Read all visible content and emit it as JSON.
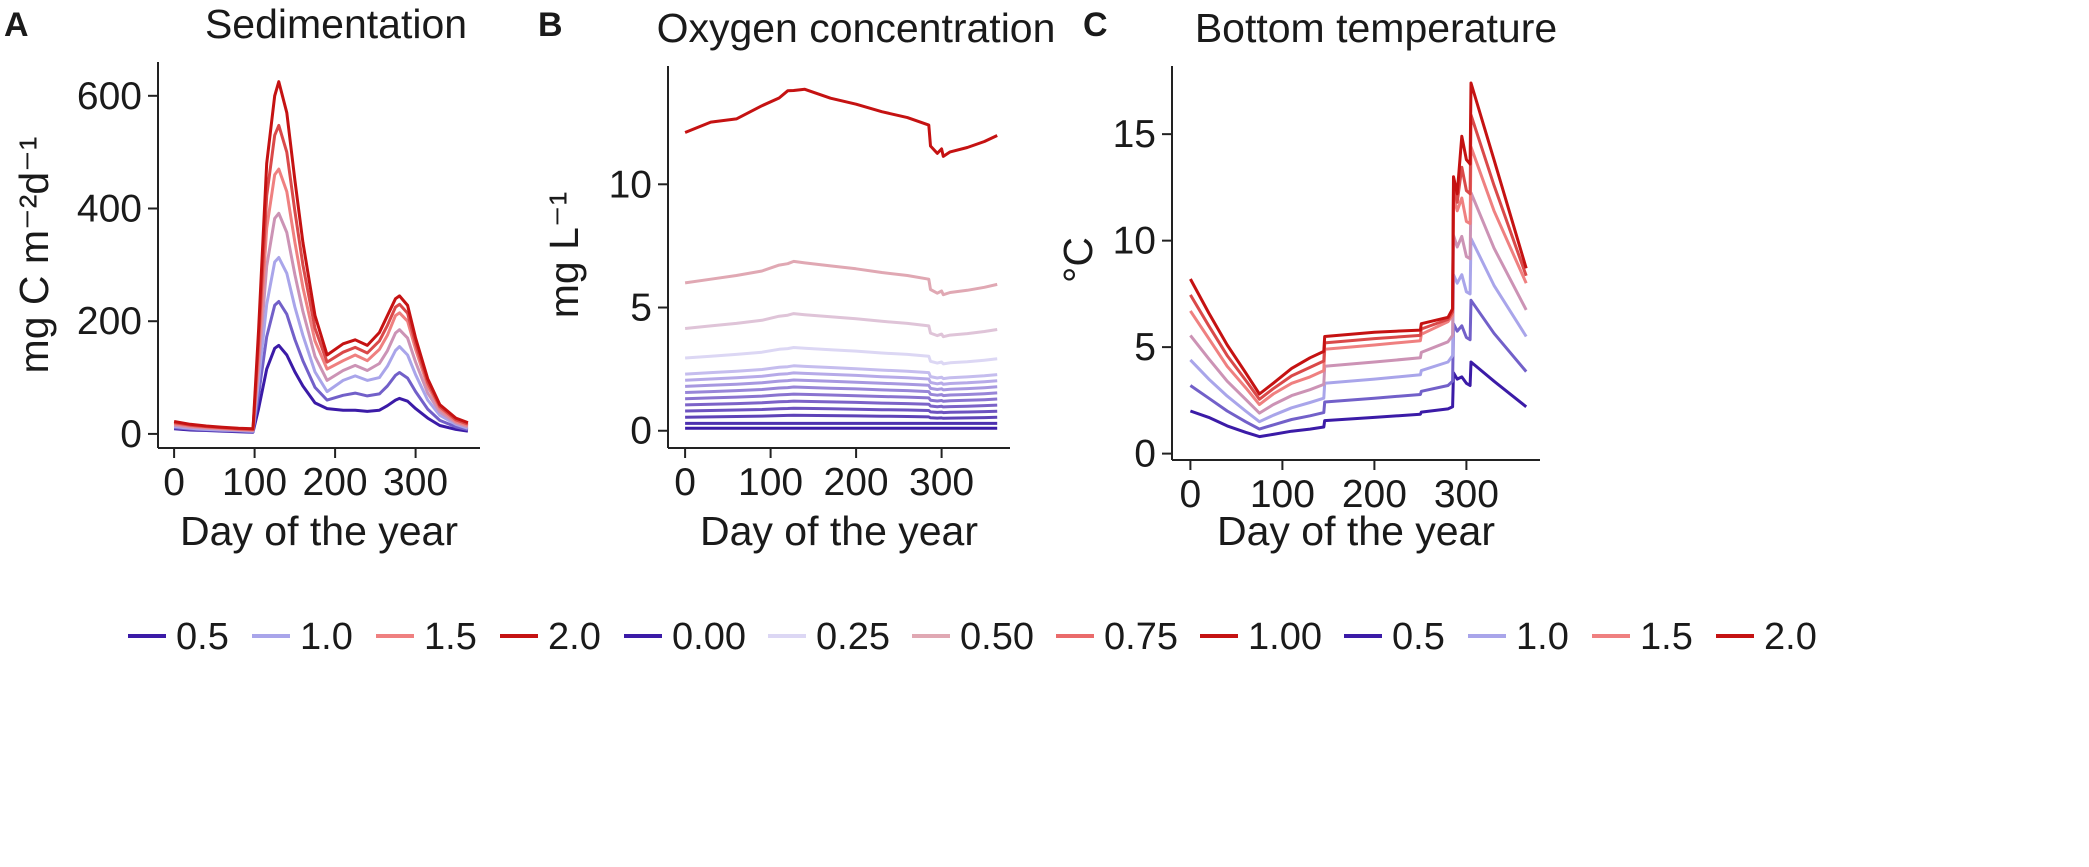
{
  "chart_data": [
    {
      "type": "line",
      "panel": "A",
      "title": "Sedimentation",
      "xlabel": "Day of the year",
      "ylabel": "mg C m⁻²d⁻¹",
      "xlim": [
        -20,
        380
      ],
      "ylim": [
        -25,
        660
      ],
      "xticks": [
        0,
        100,
        200,
        300
      ],
      "yticks": [
        0,
        200,
        400,
        600
      ],
      "x": [
        0,
        20,
        40,
        60,
        80,
        98,
        105,
        115,
        125,
        130,
        140,
        150,
        160,
        175,
        190,
        210,
        225,
        240,
        255,
        265,
        275,
        280,
        290,
        300,
        315,
        330,
        350,
        365
      ],
      "series": [
        {
          "name": "0.5",
          "color": "#3b1ba7",
          "values": [
            9,
            7,
            6,
            5,
            4,
            3,
            45,
            115,
            152,
            157,
            140,
            110,
            85,
            55,
            45,
            42,
            42,
            40,
            42,
            50,
            60,
            63,
            58,
            45,
            28,
            15,
            8,
            5
          ]
        },
        {
          "name": "1.0",
          "color": "#a9a5ea",
          "values": [
            13,
            10,
            8,
            7,
            6,
            5,
            95,
            230,
            305,
            313,
            285,
            225,
            175,
            110,
            75,
            95,
            103,
            95,
            100,
            120,
            148,
            155,
            140,
            105,
            60,
            33,
            17,
            10
          ]
        },
        {
          "name": "1.5",
          "color": "#ef8080",
          "values": [
            18,
            14,
            12,
            10,
            8,
            7,
            140,
            365,
            460,
            470,
            430,
            340,
            260,
            165,
            115,
            130,
            140,
            130,
            150,
            175,
            210,
            215,
            200,
            150,
            85,
            45,
            22,
            15
          ]
        },
        {
          "name": "2.0",
          "color": "#c51212",
          "values": [
            22,
            17,
            14,
            12,
            10,
            9,
            185,
            480,
            600,
            625,
            570,
            450,
            340,
            210,
            140,
            160,
            167,
            157,
            180,
            210,
            240,
            245,
            228,
            170,
            98,
            52,
            28,
            20
          ]
        }
      ],
      "extra_series_colors": [
        "#6e57c9",
        "#d9d3f1",
        "#f0b4b4",
        "#dc4a4a"
      ]
    },
    {
      "type": "line",
      "panel": "B",
      "title": "Oxygen concentration",
      "xlabel": "Day of the year",
      "ylabel": "mg L⁻¹",
      "xlim": [
        -20,
        380
      ],
      "ylim": [
        -0.7,
        14.8
      ],
      "xticks": [
        0,
        100,
        200,
        300
      ],
      "yticks": [
        0,
        5,
        10
      ],
      "x": [
        0,
        30,
        60,
        90,
        110,
        120,
        127,
        140,
        170,
        200,
        230,
        260,
        285,
        287,
        295,
        300,
        302,
        310,
        330,
        350,
        365
      ],
      "shape": [
        1.0,
        1.025,
        1.05,
        1.08,
        1.12,
        1.13,
        1.145,
        1.135,
        1.115,
        1.095,
        1.07,
        1.05,
        1.025,
        0.955,
        0.93,
        0.945,
        0.92,
        0.935,
        0.95,
        0.97,
        0.99
      ],
      "series": [
        {
          "name": "0.00",
          "color": "#3b1ba7",
          "base": 0.1
        },
        {
          "name": "",
          "color": "#4d31b0",
          "base": 0.3
        },
        {
          "name": "",
          "color": "#5e43b8",
          "base": 0.55
        },
        {
          "name": "",
          "color": "#6d53c0",
          "base": 0.8
        },
        {
          "name": "",
          "color": "#7c63c8",
          "base": 1.05
        },
        {
          "name": "",
          "color": "#8a74d0",
          "base": 1.3
        },
        {
          "name": "",
          "color": "#9886d8",
          "base": 1.55
        },
        {
          "name": "",
          "color": "#a798e0",
          "base": 1.8
        },
        {
          "name": "",
          "color": "#b6aae8",
          "base": 2.05
        },
        {
          "name": "",
          "color": "#c5bdee",
          "base": 2.3
        },
        {
          "name": "0.25",
          "color": "#dcd7f4",
          "base": 2.95
        },
        {
          "name": "",
          "color": "#dfc4d8",
          "base": 4.15
        },
        {
          "name": "0.50",
          "color": "#e0a8b3",
          "base": 6.0
        },
        {
          "name": "1.00",
          "color": "#c51212",
          "base": 12.1,
          "jitter": true
        }
      ]
    },
    {
      "type": "line",
      "panel": "C",
      "title": "Bottom temperature",
      "xlabel": "Day of the year",
      "ylabel": "°C",
      "xlim": [
        -20,
        380
      ],
      "ylim": [
        -0.3,
        18.2
      ],
      "xticks": [
        0,
        100,
        200,
        300
      ],
      "yticks": [
        0,
        5,
        10,
        15
      ],
      "x": [
        0,
        20,
        40,
        60,
        75,
        90,
        110,
        130,
        145,
        146,
        200,
        250,
        251,
        280,
        285,
        286,
        290,
        295,
        300,
        304,
        305,
        330,
        365
      ],
      "series": [
        {
          "name": "0.5",
          "color": "#3b1ba7",
          "values": [
            2.0,
            1.7,
            1.3,
            1.0,
            0.8,
            0.9,
            1.05,
            1.15,
            1.25,
            1.55,
            1.7,
            1.85,
            1.95,
            2.1,
            2.2,
            3.8,
            3.5,
            3.6,
            3.3,
            3.2,
            4.3,
            3.4,
            2.2
          ]
        },
        {
          "name": "1.0",
          "color": "#a9a5ea",
          "values": [
            4.4,
            3.5,
            2.7,
            2.0,
            1.5,
            1.8,
            2.15,
            2.4,
            2.6,
            3.3,
            3.5,
            3.7,
            3.9,
            4.3,
            4.6,
            8.4,
            8.0,
            8.4,
            7.6,
            7.5,
            10.1,
            7.9,
            5.5
          ]
        },
        {
          "name": "1.5",
          "color": "#ef8080",
          "values": [
            6.7,
            5.4,
            4.1,
            3.1,
            2.3,
            2.8,
            3.3,
            3.6,
            3.9,
            4.9,
            5.1,
            5.3,
            5.6,
            6.2,
            6.5,
            12.1,
            11.4,
            12.0,
            10.9,
            10.8,
            14.4,
            11.4,
            8.0
          ]
        },
        {
          "name": "2.0",
          "color": "#c51212",
          "values": [
            8.2,
            6.6,
            5.1,
            3.8,
            2.8,
            3.3,
            4.0,
            4.5,
            4.8,
            5.5,
            5.7,
            5.8,
            6.1,
            6.4,
            6.8,
            13.0,
            12.2,
            14.9,
            13.8,
            13.6,
            17.4,
            13.8,
            8.7
          ]
        }
      ],
      "extra_series_colors": [
        "#6e57c9",
        "#d9d3f1",
        "#f0b4b4",
        "#dc4a4a"
      ]
    }
  ],
  "legend": {
    "groups": [
      [
        {
          "label": "0.5",
          "color": "#3b1ba7"
        },
        {
          "label": "1.0",
          "color": "#a9a5ea"
        },
        {
          "label": "1.5",
          "color": "#ef8080"
        },
        {
          "label": "2.0",
          "color": "#c51212"
        }
      ],
      [
        {
          "label": "0.00",
          "color": "#3b1ba7"
        },
        {
          "label": "0.25",
          "color": "#dcd7f4"
        },
        {
          "label": "0.50",
          "color": "#e0a8b3"
        },
        {
          "label": "0.75",
          "color": "#ea6b6b"
        },
        {
          "label": "1.00",
          "color": "#c51212"
        }
      ],
      [
        {
          "label": "0.5",
          "color": "#3b1ba7"
        },
        {
          "label": "1.0",
          "color": "#a9a5ea"
        },
        {
          "label": "1.5",
          "color": "#ef8080"
        },
        {
          "label": "2.0",
          "color": "#c51212"
        }
      ]
    ]
  }
}
